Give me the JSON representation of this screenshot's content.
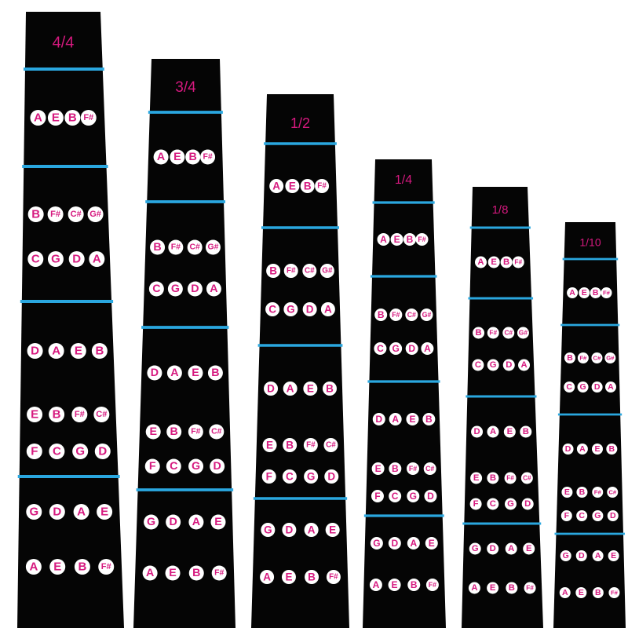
{
  "boards": [
    {
      "label": "4/4"
    },
    {
      "label": "3/4"
    },
    {
      "label": "1/2"
    },
    {
      "label": "1/4"
    },
    {
      "label": "1/8"
    },
    {
      "label": "1/10"
    }
  ],
  "rows": [
    [
      "A",
      "E",
      "B",
      "F#"
    ],
    [
      "B",
      "F#",
      "C#",
      "G#"
    ],
    [
      "C",
      "G",
      "D",
      "A"
    ],
    [
      "D",
      "A",
      "E",
      "B"
    ],
    [
      "E",
      "B",
      "F#",
      "C#"
    ],
    [
      "F",
      "C",
      "G",
      "D"
    ],
    [
      "G",
      "D",
      "A",
      "E"
    ],
    [
      "A",
      "E",
      "B",
      "F#"
    ]
  ]
}
